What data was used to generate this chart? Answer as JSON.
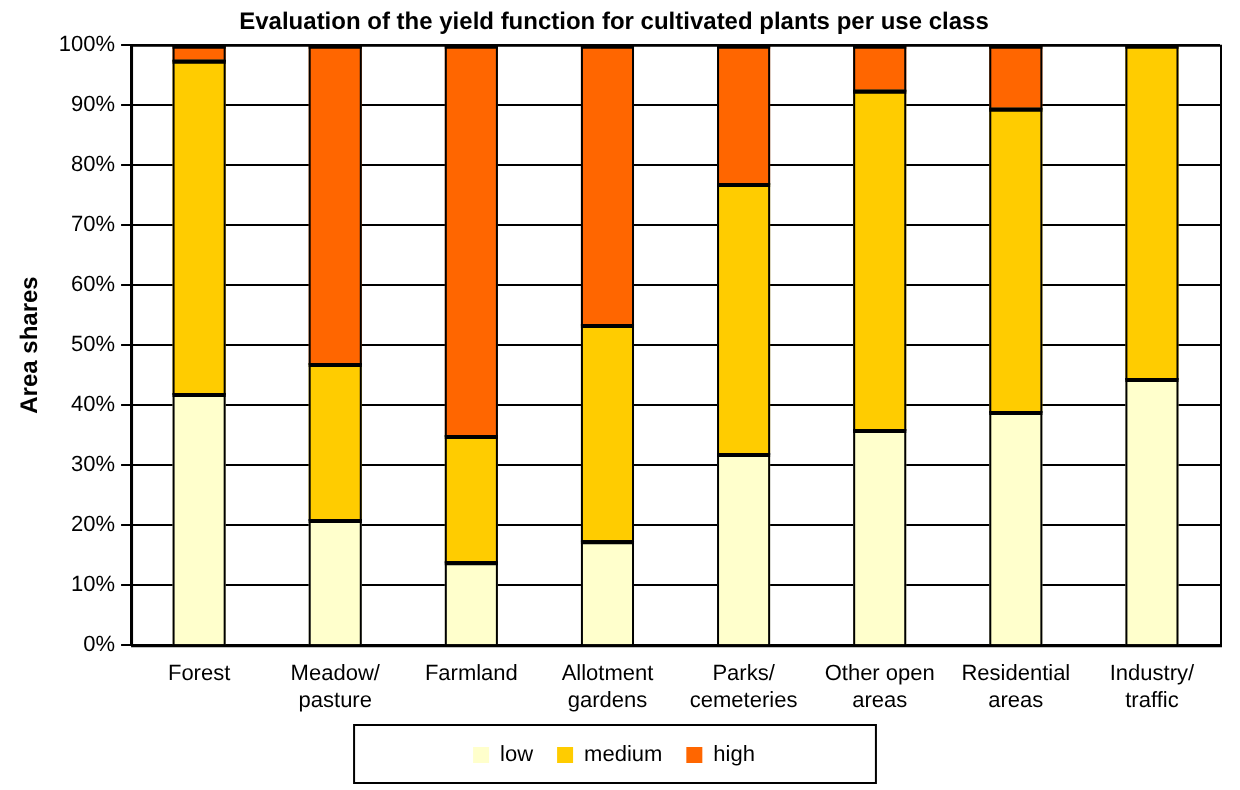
{
  "chart_data": {
    "type": "bar",
    "title": "Evaluation of the yield function for cultivated plants per use class",
    "ylabel": "Area shares",
    "categories": [
      "Forest",
      "Meadow/\npasture",
      "Farmland",
      "Allotment\ngardens",
      "Parks/\ncemeteries",
      "Other open\nareas",
      "Residential\nareas",
      "Industry/\ntraffic"
    ],
    "series": [
      {
        "name": "low",
        "color": "#ffffcc",
        "values": [
          42,
          21,
          14,
          17.5,
          32,
          36,
          39,
          44.5
        ]
      },
      {
        "name": "medium",
        "color": "#ffcc00",
        "values": [
          55.5,
          26,
          21,
          36,
          45,
          56.5,
          50.5,
          55.5
        ]
      },
      {
        "name": "high",
        "color": "#ff6600",
        "values": [
          2.5,
          53,
          65,
          46.5,
          23,
          7.5,
          10.5,
          0
        ]
      }
    ],
    "stacked": true,
    "ylim": [
      0,
      100
    ],
    "yticks": [
      {
        "value": 0,
        "label": "0%"
      },
      {
        "value": 10,
        "label": "10%"
      },
      {
        "value": 20,
        "label": "20%"
      },
      {
        "value": 30,
        "label": "30%"
      },
      {
        "value": 40,
        "label": "40%"
      },
      {
        "value": 50,
        "label": "50%"
      },
      {
        "value": 60,
        "label": "60%"
      },
      {
        "value": 70,
        "label": "70%"
      },
      {
        "value": 80,
        "label": "80%"
      },
      {
        "value": 90,
        "label": "90%"
      },
      {
        "value": 100,
        "label": "100%"
      }
    ],
    "grid": "y",
    "legend": "bottom"
  }
}
